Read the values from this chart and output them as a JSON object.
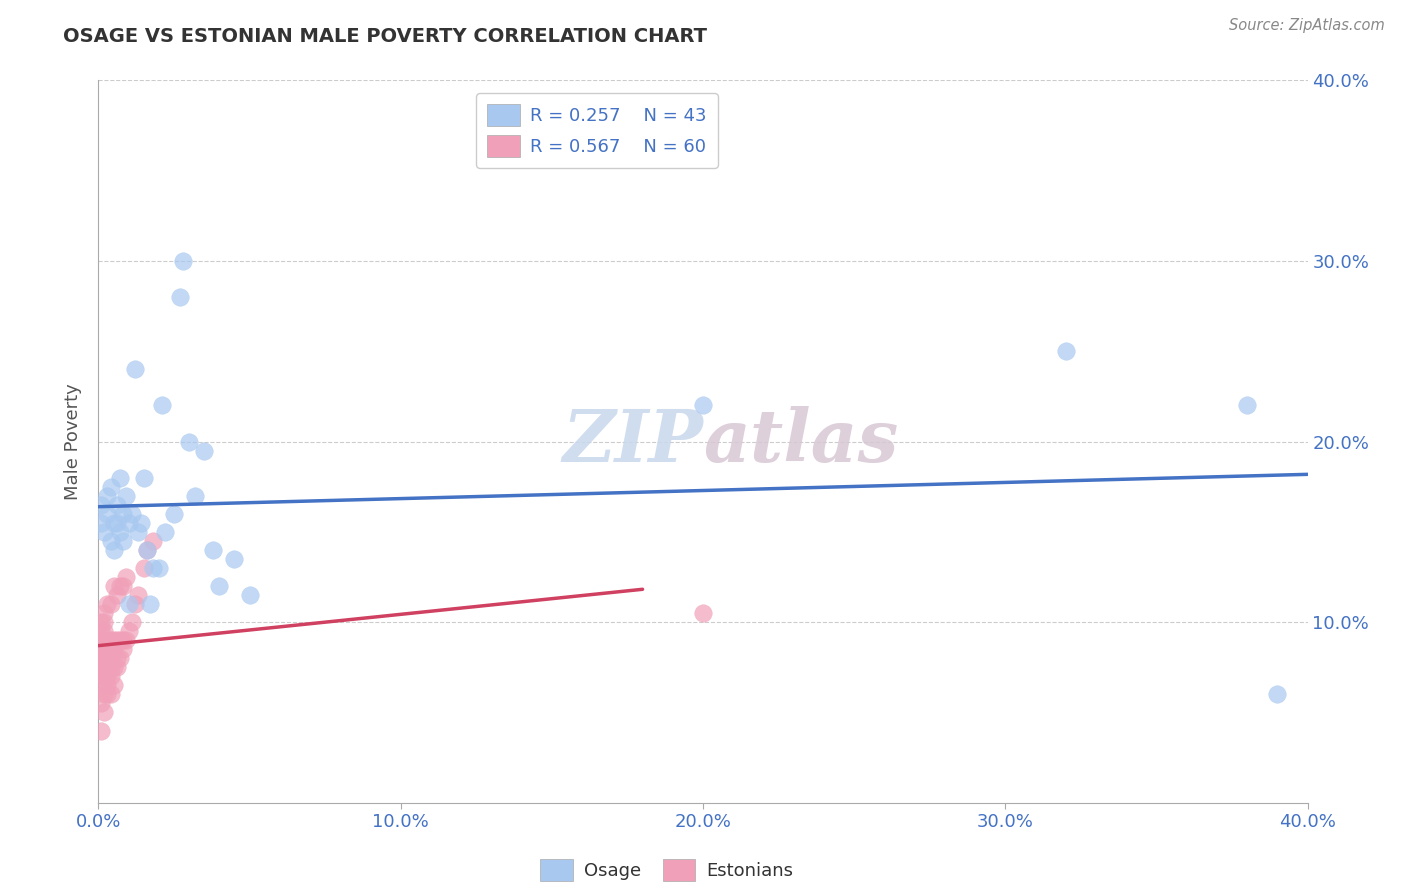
{
  "title": "OSAGE VS ESTONIAN MALE POVERTY CORRELATION CHART",
  "source": "Source: ZipAtlas.com",
  "ylabel": "Male Poverty",
  "xlim": [
    0.0,
    0.4
  ],
  "ylim": [
    0.0,
    0.4
  ],
  "xtick_labels": [
    "0.0%",
    "10.0%",
    "20.0%",
    "30.0%",
    "40.0%"
  ],
  "xtick_vals": [
    0.0,
    0.1,
    0.2,
    0.3,
    0.4
  ],
  "ytick_labels": [
    "10.0%",
    "20.0%",
    "30.0%",
    "40.0%"
  ],
  "ytick_vals": [
    0.1,
    0.2,
    0.3,
    0.4
  ],
  "osage_R": 0.257,
  "osage_N": 43,
  "estonian_R": 0.567,
  "estonian_N": 60,
  "osage_color": "#A8C8F0",
  "estonian_color": "#F0A0B8",
  "osage_line_color": "#4472C4",
  "estonian_line_color": "#D04060",
  "background_color": "#FFFFFF",
  "grid_color": "#CCCCCC",
  "watermark_zip": "ZIP",
  "watermark_atlas": "atlas",
  "osage_x": [
    0.001,
    0.001,
    0.002,
    0.003,
    0.003,
    0.004,
    0.004,
    0.005,
    0.005,
    0.006,
    0.006,
    0.007,
    0.007,
    0.008,
    0.008,
    0.009,
    0.01,
    0.01,
    0.011,
    0.012,
    0.013,
    0.014,
    0.015,
    0.016,
    0.017,
    0.018,
    0.02,
    0.021,
    0.022,
    0.025,
    0.027,
    0.028,
    0.03,
    0.032,
    0.035,
    0.038,
    0.04,
    0.045,
    0.05,
    0.2,
    0.32,
    0.38,
    0.39
  ],
  "osage_y": [
    0.155,
    0.165,
    0.15,
    0.16,
    0.17,
    0.145,
    0.175,
    0.155,
    0.14,
    0.155,
    0.165,
    0.15,
    0.18,
    0.16,
    0.145,
    0.17,
    0.155,
    0.11,
    0.16,
    0.24,
    0.15,
    0.155,
    0.18,
    0.14,
    0.11,
    0.13,
    0.13,
    0.22,
    0.15,
    0.16,
    0.28,
    0.3,
    0.2,
    0.17,
    0.195,
    0.14,
    0.12,
    0.135,
    0.115,
    0.22,
    0.25,
    0.22,
    0.06
  ],
  "estonian_x": [
    0.001,
    0.001,
    0.001,
    0.001,
    0.001,
    0.001,
    0.001,
    0.001,
    0.001,
    0.001,
    0.002,
    0.002,
    0.002,
    0.002,
    0.002,
    0.002,
    0.002,
    0.002,
    0.002,
    0.002,
    0.003,
    0.003,
    0.003,
    0.003,
    0.003,
    0.003,
    0.003,
    0.003,
    0.004,
    0.004,
    0.004,
    0.004,
    0.004,
    0.004,
    0.004,
    0.005,
    0.005,
    0.005,
    0.005,
    0.005,
    0.006,
    0.006,
    0.006,
    0.006,
    0.007,
    0.007,
    0.007,
    0.008,
    0.008,
    0.008,
    0.009,
    0.009,
    0.01,
    0.011,
    0.012,
    0.013,
    0.015,
    0.016,
    0.018,
    0.2
  ],
  "estonian_y": [
    0.04,
    0.055,
    0.065,
    0.07,
    0.075,
    0.08,
    0.085,
    0.09,
    0.095,
    0.1,
    0.05,
    0.06,
    0.07,
    0.075,
    0.08,
    0.085,
    0.09,
    0.095,
    0.1,
    0.105,
    0.06,
    0.065,
    0.07,
    0.075,
    0.08,
    0.085,
    0.09,
    0.11,
    0.06,
    0.07,
    0.075,
    0.08,
    0.085,
    0.09,
    0.11,
    0.065,
    0.075,
    0.085,
    0.09,
    0.12,
    0.075,
    0.08,
    0.09,
    0.115,
    0.08,
    0.09,
    0.12,
    0.085,
    0.09,
    0.12,
    0.09,
    0.125,
    0.095,
    0.1,
    0.11,
    0.115,
    0.13,
    0.14,
    0.145,
    0.105
  ]
}
